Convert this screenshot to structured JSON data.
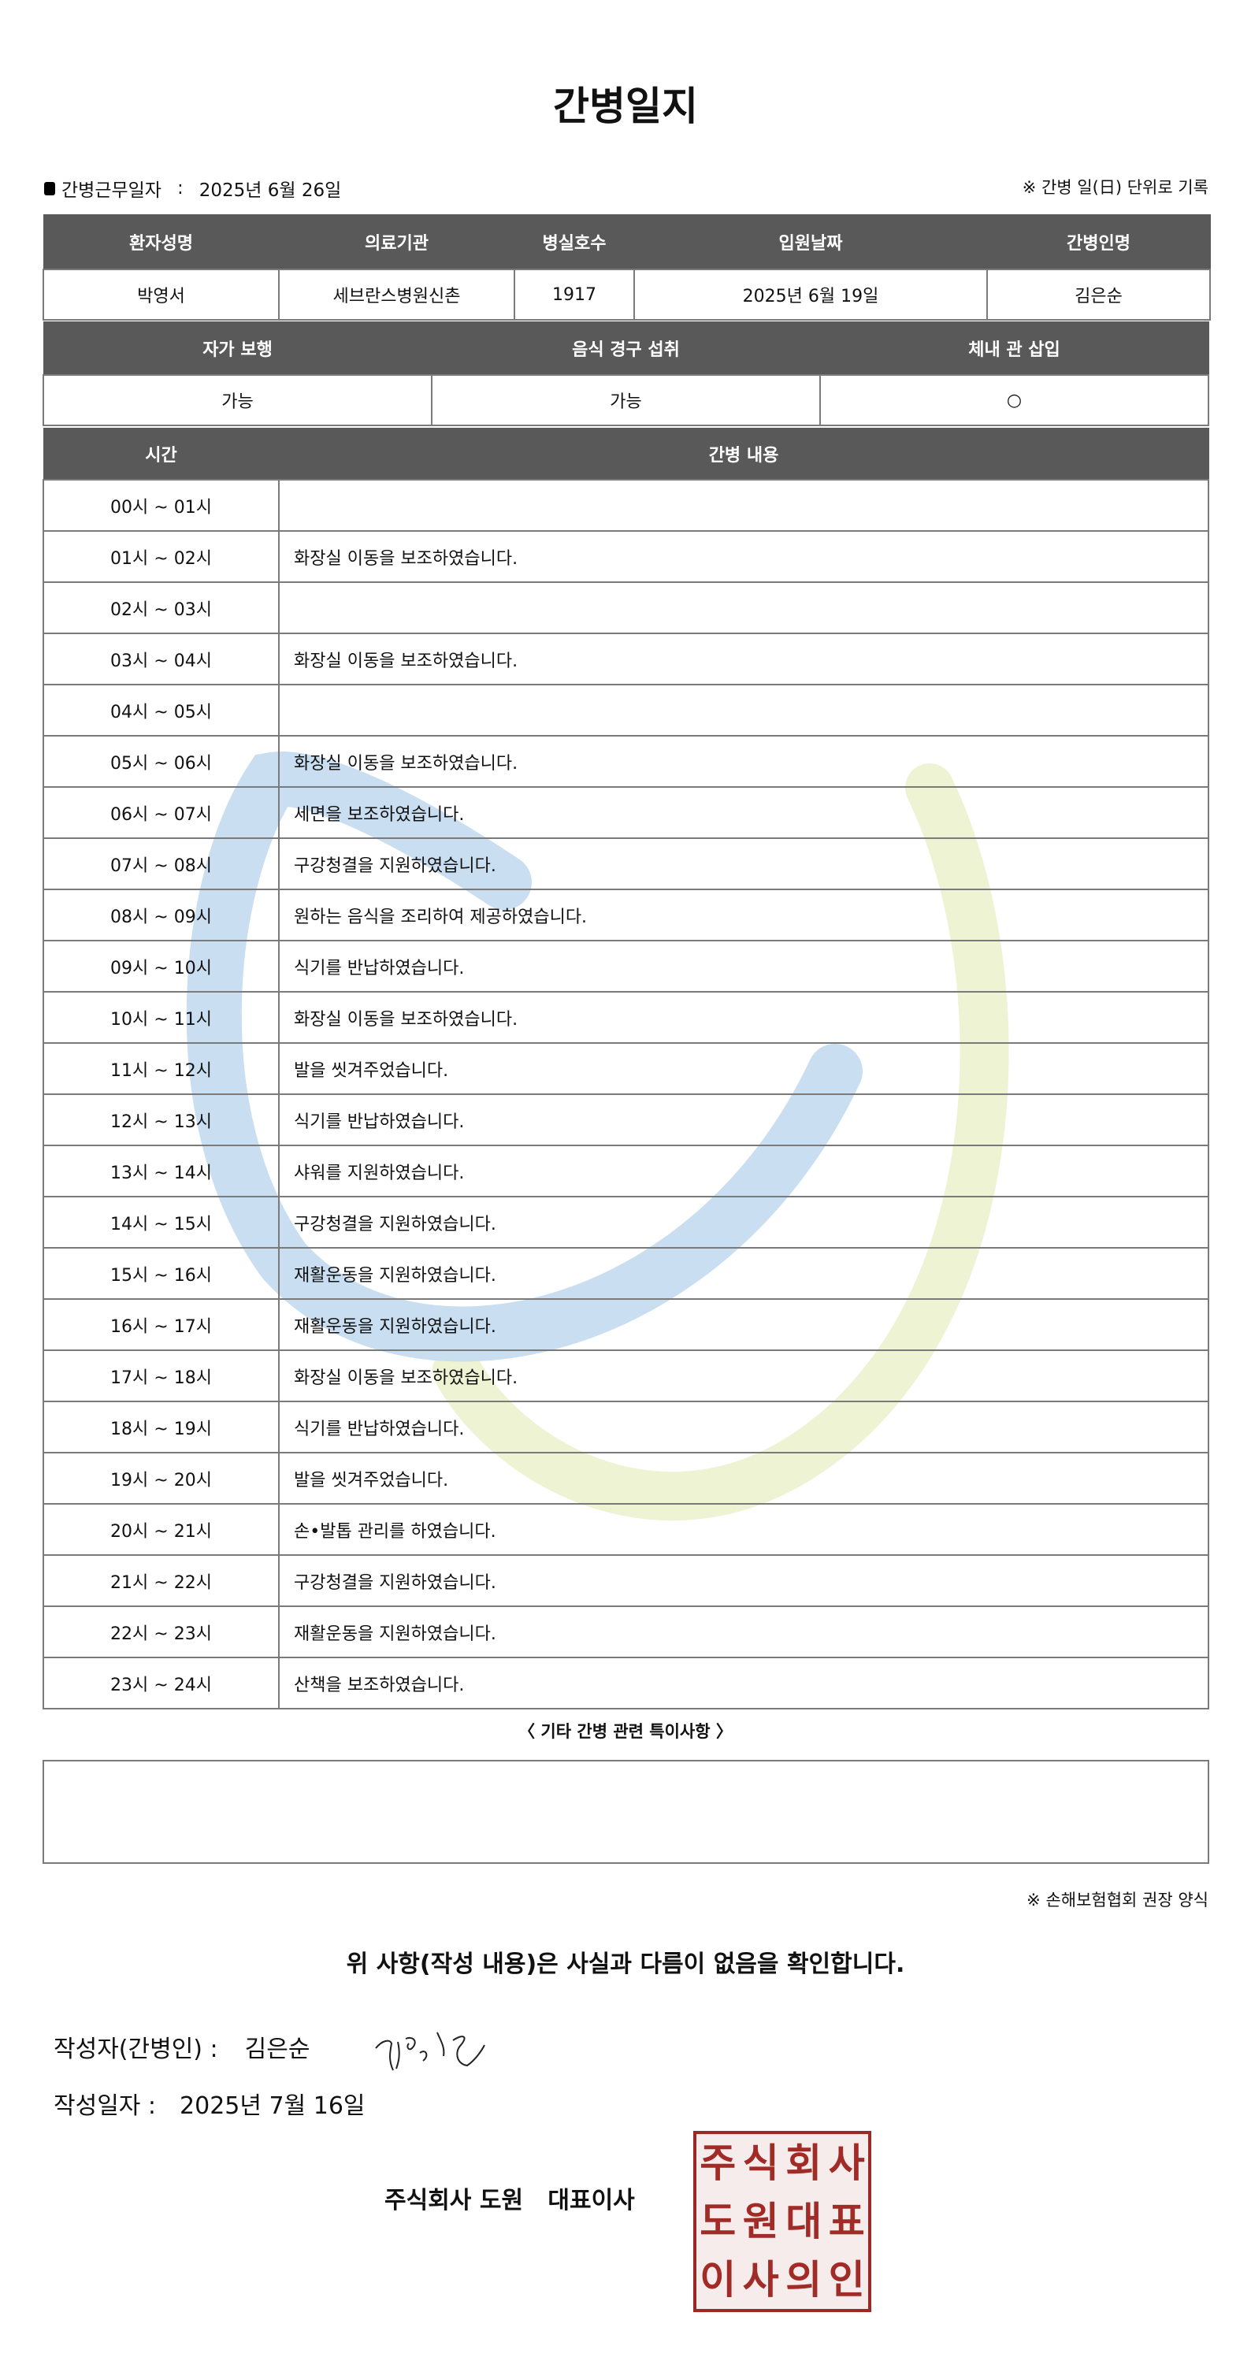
{
  "title": "간병일지",
  "work_date": {
    "label": "간병근무일자",
    "separator": ":",
    "value": "2025년 6월 26일"
  },
  "unit_note": "※ 간병 일(日) 단위로 기록",
  "patient_table": {
    "headers": [
      "환자성명",
      "의료기관",
      "병실호수",
      "입원날짜",
      "간병인명"
    ],
    "values": [
      "박영서",
      "세브란스병원신촌",
      "1917",
      "2025년 6월 19일",
      "김은순"
    ]
  },
  "status_table": {
    "headers": [
      "자가 보행",
      "음식 경구 섭취",
      "체내 관 삽입"
    ],
    "values": [
      "가능",
      "가능",
      "○"
    ]
  },
  "care_table": {
    "headers": [
      "시간",
      "간병 내용"
    ],
    "rows": [
      {
        "time": "00시 ~ 01시",
        "content": ""
      },
      {
        "time": "01시 ~ 02시",
        "content": "화장실 이동을 보조하였습니다."
      },
      {
        "time": "02시 ~ 03시",
        "content": ""
      },
      {
        "time": "03시 ~ 04시",
        "content": "화장실 이동을 보조하였습니다."
      },
      {
        "time": "04시 ~ 05시",
        "content": ""
      },
      {
        "time": "05시 ~ 06시",
        "content": "화장실 이동을 보조하였습니다."
      },
      {
        "time": "06시 ~ 07시",
        "content": "세면을 보조하였습니다."
      },
      {
        "time": "07시 ~ 08시",
        "content": "구강청결을 지원하였습니다."
      },
      {
        "time": "08시 ~ 09시",
        "content": "원하는 음식을 조리하여 제공하였습니다."
      },
      {
        "time": "09시 ~ 10시",
        "content": "식기를 반납하였습니다."
      },
      {
        "time": "10시 ~ 11시",
        "content": "화장실 이동을 보조하였습니다."
      },
      {
        "time": "11시 ~ 12시",
        "content": "발을 씻겨주었습니다."
      },
      {
        "time": "12시 ~ 13시",
        "content": "식기를 반납하였습니다."
      },
      {
        "time": "13시 ~ 14시",
        "content": "샤워를 지원하였습니다."
      },
      {
        "time": "14시 ~ 15시",
        "content": "구강청결을 지원하였습니다."
      },
      {
        "time": "15시 ~ 16시",
        "content": "재활운동을 지원하였습니다."
      },
      {
        "time": "16시 ~ 17시",
        "content": "재활운동을 지원하였습니다."
      },
      {
        "time": "17시 ~ 18시",
        "content": "화장실 이동을 보조하였습니다."
      },
      {
        "time": "18시 ~ 19시",
        "content": "식기를 반납하였습니다."
      },
      {
        "time": "19시 ~ 20시",
        "content": "발을 씻겨주었습니다."
      },
      {
        "time": "20시 ~ 21시",
        "content": "손•발톱 관리를 하였습니다."
      },
      {
        "time": "21시 ~ 22시",
        "content": "구강청결을 지원하였습니다."
      },
      {
        "time": "22시 ~ 23시",
        "content": "재활운동을 지원하였습니다."
      },
      {
        "time": "23시 ~ 24시",
        "content": "산책을 보조하였습니다."
      }
    ]
  },
  "notes": {
    "label": "〈 기타 간병 관련 특이사항 〉",
    "value": ""
  },
  "footnote": "※ 손해보험협회 권장 양식",
  "confirmation": "위 사항(작성 내용)은 사실과 다름이 없음을 확인합니다.",
  "writer": {
    "label": "작성자(간병인) :",
    "name": "김은순"
  },
  "written_date": {
    "label": "작성일자 :",
    "value": "2025년 7월 16일"
  },
  "company": "주식회사 도원   대표이사",
  "seal_text": [
    "주",
    "식",
    "회",
    "사",
    "도",
    "원",
    "대",
    "표",
    "이",
    "사",
    "의",
    "인"
  ],
  "colors": {
    "header_bg": "#595959",
    "seal_red": "#9b2a26",
    "watermark_blue": "#c6dcef",
    "watermark_yellow": "#eef3d3"
  }
}
